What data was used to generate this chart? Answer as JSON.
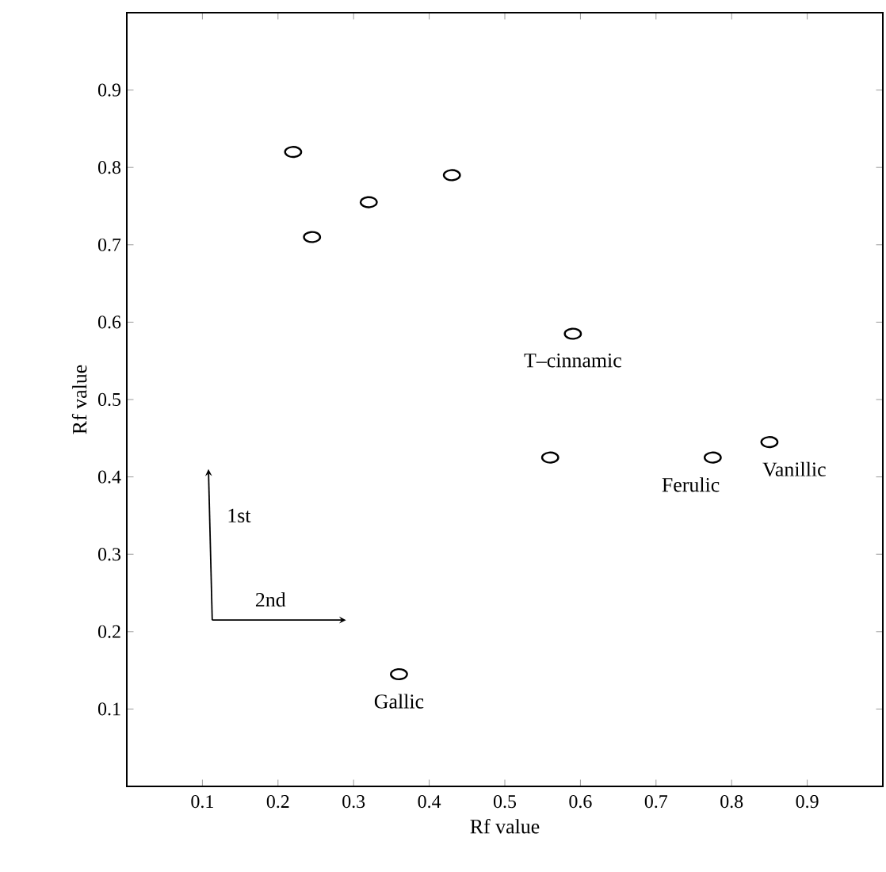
{
  "chart_data": {
    "type": "scatter",
    "xlabel": "Rf value",
    "ylabel": "Rf value",
    "x": [
      0.22,
      0.245,
      0.32,
      0.43,
      0.59,
      0.56,
      0.775,
      0.85,
      0.36
    ],
    "values": [
      0.82,
      0.71,
      0.755,
      0.79,
      0.585,
      0.425,
      0.425,
      0.445,
      0.145
    ],
    "color": "#000000",
    "marker": "circle",
    "xlim": [
      0,
      1
    ],
    "ylim": [
      0,
      1
    ],
    "xticks": [
      0.1,
      0.2,
      0.3,
      0.4,
      0.5,
      0.6,
      0.7,
      0.8,
      0.9
    ],
    "yticks": [
      0.1,
      0.2,
      0.3,
      0.4,
      0.5,
      0.6,
      0.7,
      0.8,
      0.9
    ],
    "annotations": [
      {
        "text": "T–cinnamic",
        "x": 0.59,
        "y": 0.585
      },
      {
        "text": "Ferulic",
        "x": 0.775,
        "y": 0.425
      },
      {
        "text": "Vanillic",
        "x": 0.85,
        "y": 0.445
      },
      {
        "text": "Gallic",
        "x": 0.36,
        "y": 0.145
      },
      "1st",
      "2nd"
    ],
    "grid": false
  }
}
